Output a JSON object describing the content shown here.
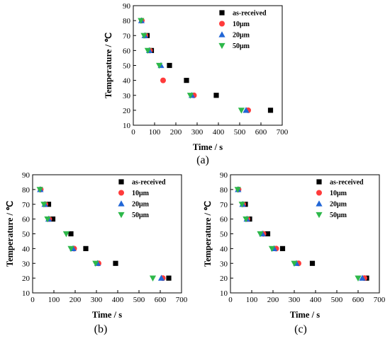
{
  "colors": {
    "as-received": "#000000",
    "10um": "#ff3b3b",
    "20um": "#2166d6",
    "50um": "#2db84a"
  },
  "chart_data": [
    {
      "type": "scatter",
      "caption": "(a)",
      "xlabel": "Time / s",
      "ylabel": "Temperature / ℃",
      "xlim": [
        0,
        700
      ],
      "ylim": [
        10,
        90
      ],
      "xticks": [
        "0",
        "100",
        "200",
        "300",
        "400",
        "500",
        "600",
        "700"
      ],
      "yticks": [
        "10",
        "20",
        "30",
        "40",
        "50",
        "60",
        "70",
        "80",
        "90"
      ],
      "grid": false,
      "legend": "top-right",
      "series": [
        {
          "name": "as-received",
          "marker": "square",
          "x": [
            65,
            85,
            170,
            250,
            390,
            645
          ],
          "y": [
            70,
            60,
            50,
            40,
            30,
            20
          ]
        },
        {
          "name": "10μm",
          "marker": "circle",
          "x": [
            40,
            57,
            78,
            140,
            285,
            540
          ],
          "y": [
            80,
            70,
            60,
            40,
            30,
            20
          ]
        },
        {
          "name": "20μm",
          "marker": "triangle-up",
          "x": [
            38,
            54,
            75,
            130,
            275,
            530
          ],
          "y": [
            80,
            70,
            60,
            50,
            30,
            20
          ]
        },
        {
          "name": "50μm",
          "marker": "triangle-down",
          "x": [
            36,
            50,
            68,
            122,
            268,
            508
          ],
          "y": [
            80,
            70,
            60,
            50,
            30,
            20
          ]
        }
      ]
    },
    {
      "type": "scatter",
      "caption": "(b)",
      "xlabel": "Time / s",
      "ylabel": "Temperature / ℃",
      "xlim": [
        0,
        700
      ],
      "ylim": [
        10,
        90
      ],
      "xticks": [
        "0",
        "100",
        "200",
        "300",
        "400",
        "500",
        "600",
        "700"
      ],
      "yticks": [
        "10",
        "20",
        "30",
        "40",
        "50",
        "60",
        "70",
        "80",
        "90"
      ],
      "grid": false,
      "legend": "top-right",
      "series": [
        {
          "name": "as-received",
          "marker": "square",
          "x": [
            75,
            95,
            180,
            250,
            390,
            640
          ],
          "y": [
            70,
            60,
            50,
            40,
            30,
            20
          ]
        },
        {
          "name": "10μm",
          "marker": "circle",
          "x": [
            38,
            60,
            78,
            195,
            310,
            612
          ],
          "y": [
            80,
            70,
            60,
            40,
            30,
            20
          ]
        },
        {
          "name": "20μm",
          "marker": "triangle-up",
          "x": [
            36,
            57,
            75,
            190,
            305,
            605
          ],
          "y": [
            80,
            70,
            60,
            40,
            30,
            20
          ]
        },
        {
          "name": "50μm",
          "marker": "triangle-down",
          "x": [
            34,
            53,
            70,
            158,
            180,
            296,
            565
          ],
          "y": [
            80,
            70,
            60,
            50,
            40,
            30,
            20
          ]
        }
      ]
    },
    {
      "type": "scatter",
      "caption": "(c)",
      "xlabel": "Time / s",
      "ylabel": "Temperature / ℃",
      "xlim": [
        0,
        700
      ],
      "ylim": [
        10,
        90
      ],
      "xticks": [
        "0",
        "100",
        "200",
        "300",
        "400",
        "500",
        "600",
        "700"
      ],
      "yticks": [
        "10",
        "20",
        "30",
        "40",
        "50",
        "60",
        "70",
        "80",
        "90"
      ],
      "grid": false,
      "legend": "top-right",
      "series": [
        {
          "name": "as-received",
          "marker": "square",
          "x": [
            70,
            90,
            175,
            245,
            385,
            640
          ],
          "y": [
            70,
            60,
            50,
            40,
            30,
            20
          ]
        },
        {
          "name": "10μm",
          "marker": "circle",
          "x": [
            38,
            60,
            80,
            155,
            215,
            320,
            630
          ],
          "y": [
            80,
            70,
            60,
            50,
            40,
            30,
            20
          ]
        },
        {
          "name": "20μm",
          "marker": "triangle-up",
          "x": [
            36,
            57,
            77,
            150,
            205,
            310,
            620
          ],
          "y": [
            80,
            70,
            60,
            50,
            40,
            30,
            20
          ]
        },
        {
          "name": "50μm",
          "marker": "triangle-down",
          "x": [
            34,
            54,
            73,
            140,
            195,
            300,
            600
          ],
          "y": [
            80,
            70,
            60,
            50,
            40,
            30,
            20
          ]
        }
      ]
    }
  ]
}
